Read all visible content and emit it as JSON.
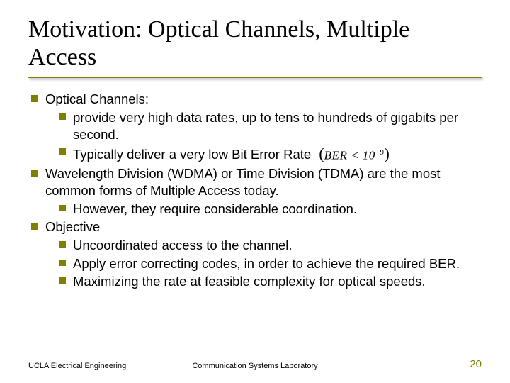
{
  "title": "Motivation: Optical Channels, Multiple Access",
  "bullets": {
    "b1": "Optical Channels:",
    "b1a": "provide very high data rates, up to tens to hundreds of gigabits per second.",
    "b1b": "Typically deliver a very low Bit Error Rate",
    "formula_text": "BER < 10",
    "formula_exp": "−9",
    "b2": "Wavelength Division (WDMA) or Time Division (TDMA) are the most common forms of Multiple Access today.",
    "b2a": "However, they require considerable coordination.",
    "b3": "Objective",
    "b3a": "Uncoordinated access to the channel.",
    "b3b": "Apply error correcting codes, in order to achieve the required BER.",
    "b3c": "Maximizing the rate at feasible complexity for optical speeds."
  },
  "footer": {
    "left": "UCLA Electrical Engineering",
    "center": "Communication Systems Laboratory",
    "page": "20"
  },
  "colors": {
    "accent": "#808000",
    "text": "#000000",
    "bg": "#ffffff"
  }
}
